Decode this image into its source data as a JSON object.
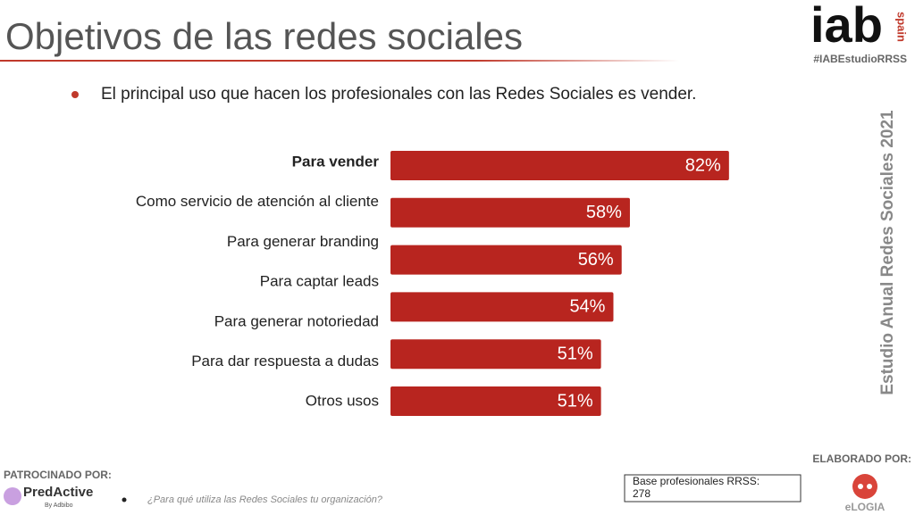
{
  "chart_data": {
    "type": "hbar",
    "title": "Objetivos de las redes sociales",
    "subtitle": "El principal uso que hacen los profesionales con las Redes Sociales es vender.",
    "categories": [
      "Para vender",
      "Como servicio de atención al cliente",
      "Para generar branding",
      "Para captar leads",
      "Para generar notoriedad",
      "Para dar respuesta a dudas",
      "Otros usos"
    ],
    "values": [
      82,
      58,
      56,
      null,
      54,
      51,
      51
    ],
    "value_labels": [
      "82%",
      "58%",
      "56%",
      null,
      "54%",
      "51%",
      "51%"
    ],
    "color": "#b8251f",
    "xlim": [
      0,
      100
    ],
    "question": "¿Para qué utiliza las Redes Sociales tu organización?",
    "base": [
      "Base profesionales RRSS:",
      "278"
    ]
  },
  "header": {
    "logo": "iab",
    "logo_sub": "spain",
    "hashtag": "#IABEstudioRRSS"
  },
  "side_text": "Estudio Anual Redes Sociales 2021",
  "footer": {
    "sponsor_label": "PATROCINADO POR:",
    "sponsor": "PredActive",
    "sponsor_sub": "By Adbibo",
    "author_label": "ELABORADO POR:",
    "author": "eLOGIA"
  }
}
